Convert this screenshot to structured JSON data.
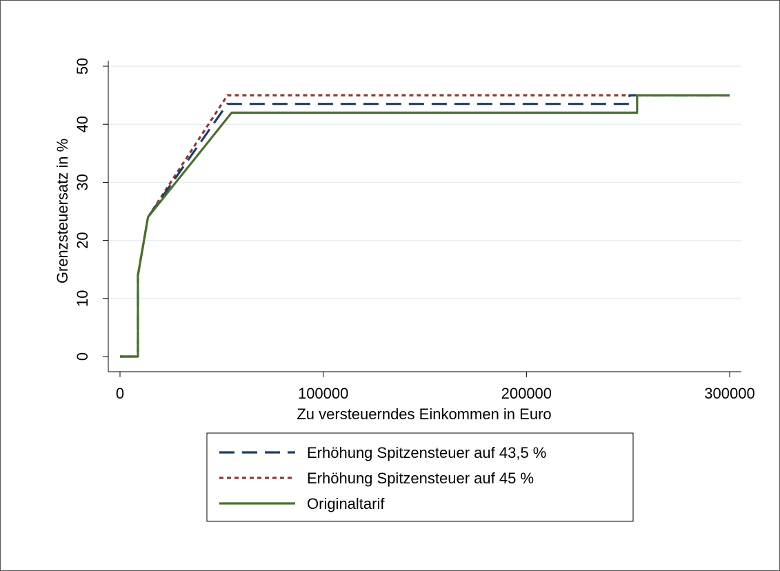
{
  "chart_data": {
    "type": "line",
    "xlabel": "Zu versteuerndes Einkommen in Euro",
    "ylabel": "Grenzsteuersatz in %",
    "xlim": [
      0,
      300000
    ],
    "ylim": [
      0,
      50
    ],
    "xticks": [
      0,
      100000,
      200000,
      300000
    ],
    "xtick_labels": [
      "0",
      "100000",
      "200000",
      "300000"
    ],
    "yticks": [
      0,
      10,
      20,
      30,
      40,
      50
    ],
    "ytick_labels": [
      "0",
      "10",
      "20",
      "30",
      "40",
      "50"
    ],
    "grid": true,
    "legend_position": "bottom",
    "series": [
      {
        "name": "Erhöhung Spitzensteuer auf 43,5 %",
        "color": "#1f3d64",
        "style": "long-dash",
        "x": [
          0,
          8820,
          8820,
          13770,
          52880,
          52880,
          250730,
          250730,
          300000
        ],
        "y": [
          0,
          0,
          14,
          24,
          43.5,
          43.5,
          43.5,
          45,
          45
        ]
      },
      {
        "name": "Erhöhung Spitzensteuer auf 45 %",
        "color": "#8b3a3a",
        "style": "short-dash",
        "x": [
          0,
          8820,
          8820,
          13770,
          52880,
          300000
        ],
        "y": [
          0,
          0,
          14,
          24,
          45,
          45
        ]
      },
      {
        "name": "Originaltarif",
        "color": "#4a7030",
        "style": "solid",
        "x": [
          0,
          8820,
          8820,
          13770,
          54950,
          54950,
          254450,
          254450,
          300000
        ],
        "y": [
          0,
          0,
          14,
          24,
          42,
          42,
          42,
          45,
          45
        ]
      }
    ]
  }
}
